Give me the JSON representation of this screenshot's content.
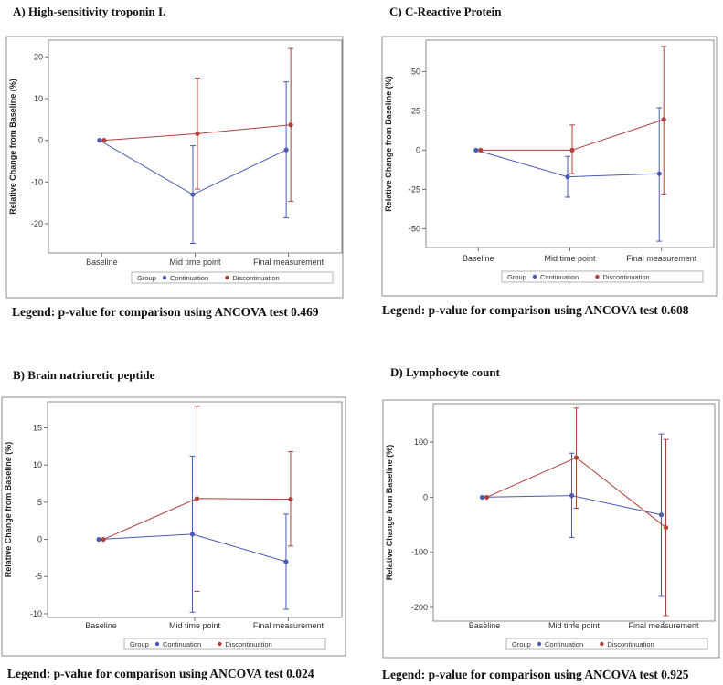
{
  "chart_data": [
    {
      "type": "line",
      "panel": "A)",
      "title": "High-sensitivity troponin I.",
      "ylabel": "Relative Change from Baseline (%)",
      "categories": [
        "Baseline",
        "Mid time point",
        "Final measurement"
      ],
      "ylim": [
        -27,
        24
      ],
      "yticks": [
        -20,
        -10,
        0,
        10,
        20
      ],
      "legend_title": "Group",
      "series": [
        {
          "name": "Continuation",
          "color": "#4a5bb0",
          "values": [
            0,
            -13,
            -2.3
          ],
          "lower": [
            0,
            -24.7,
            -18.6
          ],
          "upper": [
            0,
            -1.3,
            14
          ]
        },
        {
          "name": "Discontinuation",
          "color": "#b0403a",
          "values": [
            0,
            1.6,
            3.7
          ],
          "lower": [
            0,
            -11.7,
            -14.6
          ],
          "upper": [
            0,
            14.9,
            22
          ]
        }
      ],
      "note": "Legend: p-value for comparison using ANCOVA test 0.469"
    },
    {
      "type": "line",
      "panel": "C)",
      "title": "C-Reactive Protein",
      "ylabel": "Relative Change from Baseline (%)",
      "categories": [
        "Baseline",
        "Mid time point",
        "Final measurement"
      ],
      "ylim": [
        -62,
        70
      ],
      "yticks": [
        -50,
        -25,
        0,
        25,
        50
      ],
      "legend_title": "Group",
      "series": [
        {
          "name": "Continuation",
          "color": "#4a5bb0",
          "values": [
            0,
            -17,
            -15
          ],
          "lower": [
            0,
            -30,
            -58
          ],
          "upper": [
            0,
            -4,
            27
          ]
        },
        {
          "name": "Discontinuation",
          "color": "#b0403a",
          "values": [
            0,
            0,
            19.5
          ],
          "lower": [
            0,
            -15,
            -28
          ],
          "upper": [
            0,
            16,
            66
          ]
        }
      ],
      "note": "Legend: p-value for comparison using ANCOVA test 0.608"
    },
    {
      "type": "line",
      "panel": "B)",
      "title": "Brain natriuretic peptide",
      "ylabel": "Relative Change from Baseline (%)",
      "categories": [
        "Baseline",
        "Mid time point",
        "Final measurement"
      ],
      "ylim": [
        -10.5,
        18.5
      ],
      "yticks": [
        -10,
        -5,
        0,
        5,
        10,
        15
      ],
      "legend_title": "Group",
      "series": [
        {
          "name": "Continuation",
          "color": "#4a5bb0",
          "values": [
            0,
            0.7,
            -3
          ],
          "lower": [
            0,
            -9.8,
            -9.4
          ],
          "upper": [
            0,
            11.2,
            3.4
          ]
        },
        {
          "name": "Discontinuation",
          "color": "#b0403a",
          "values": [
            0,
            5.5,
            5.4
          ],
          "lower": [
            0,
            -7,
            -0.9
          ],
          "upper": [
            0,
            17.9,
            11.8
          ]
        }
      ],
      "note": "Legend: p-value for comparison using ANCOVA test 0.024"
    },
    {
      "type": "line",
      "panel": "D)",
      "title": "Lymphocyte count",
      "ylabel": "Relative Change from Baseline (%)",
      "categories": [
        "Baseline",
        "Mid time point",
        "Final measurement"
      ],
      "ylim": [
        -225,
        170
      ],
      "yticks": [
        -200,
        -100,
        0,
        100
      ],
      "legend_title": "Group",
      "series": [
        {
          "name": "Continuation",
          "color": "#4a5bb0",
          "values": [
            0,
            3,
            -32
          ],
          "lower": [
            0,
            -73,
            -180
          ],
          "upper": [
            0,
            80,
            115
          ]
        },
        {
          "name": "Discontinuation",
          "color": "#b0403a",
          "values": [
            0,
            72,
            -55
          ],
          "lower": [
            0,
            -20,
            -215
          ],
          "upper": [
            0,
            162,
            105
          ]
        }
      ],
      "note": "Legend: p-value for comparison using ANCOVA test 0.925"
    }
  ]
}
